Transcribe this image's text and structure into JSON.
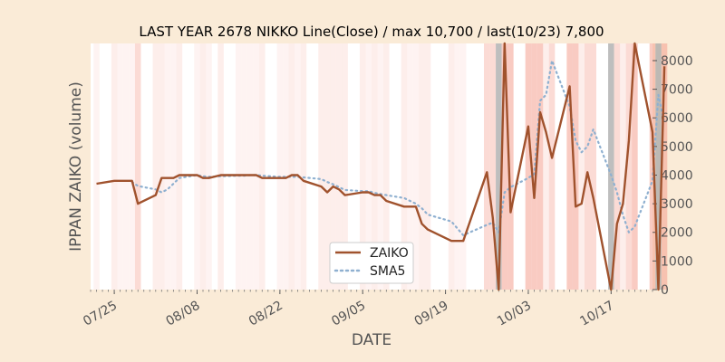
{
  "chart_data": {
    "type": "line",
    "title": "LAST YEAR 2678 NIKKO Line(Close) / max 10,700 / last(10/23) 7,800",
    "xlabel": "DATE",
    "ylabel": "IPPAN ZAIKO (volume)",
    "ylim": [
      0,
      8600
    ],
    "yticks": [
      0,
      1000,
      2000,
      3000,
      4000,
      5000,
      6000,
      7000,
      8000
    ],
    "ytick_labels": [
      "0",
      "1000",
      "2000",
      "3000",
      "4000",
      "5000",
      "6000",
      "7000",
      "8000"
    ],
    "xlim": [
      "2022-07-21",
      "2022-10-24"
    ],
    "xticks": [
      "2022-07-25",
      "2022-08-08",
      "2022-08-22",
      "2022-09-05",
      "2022-09-19",
      "2022-10-03",
      "2022-10-17"
    ],
    "xtick_labels": [
      "07/25",
      "08/08",
      "08/22",
      "09/05",
      "09/19",
      "10/03",
      "10/17"
    ],
    "legend": {
      "placement": "lower-center"
    },
    "colors": {
      "zaiko": "#a0522d",
      "sma5": "#8fb0d0",
      "band": "#f4a090",
      "band_dark": "#a8a8a8"
    },
    "series": [
      {
        "name": "ZAIKO",
        "style": "solid",
        "points": [
          [
            "2022-07-22",
            3700
          ],
          [
            "2022-07-25",
            3800
          ],
          [
            "2022-07-26",
            3800
          ],
          [
            "2022-07-27",
            3800
          ],
          [
            "2022-07-28",
            3800
          ],
          [
            "2022-07-29",
            3000
          ],
          [
            "2022-08-01",
            3300
          ],
          [
            "2022-08-02",
            3900
          ],
          [
            "2022-08-03",
            3900
          ],
          [
            "2022-08-04",
            3900
          ],
          [
            "2022-08-05",
            4000
          ],
          [
            "2022-08-08",
            4000
          ],
          [
            "2022-08-09",
            3900
          ],
          [
            "2022-08-10",
            3900
          ],
          [
            "2022-08-12",
            4000
          ],
          [
            "2022-08-15",
            4000
          ],
          [
            "2022-08-16",
            4000
          ],
          [
            "2022-08-17",
            4000
          ],
          [
            "2022-08-18",
            4000
          ],
          [
            "2022-08-19",
            3900
          ],
          [
            "2022-08-22",
            3900
          ],
          [
            "2022-08-23",
            3900
          ],
          [
            "2022-08-24",
            4000
          ],
          [
            "2022-08-25",
            4000
          ],
          [
            "2022-08-26",
            3800
          ],
          [
            "2022-08-29",
            3600
          ],
          [
            "2022-08-30",
            3400
          ],
          [
            "2022-08-31",
            3600
          ],
          [
            "2022-09-01",
            3500
          ],
          [
            "2022-09-02",
            3300
          ],
          [
            "2022-09-05",
            3400
          ],
          [
            "2022-09-06",
            3400
          ],
          [
            "2022-09-07",
            3300
          ],
          [
            "2022-09-08",
            3300
          ],
          [
            "2022-09-09",
            3100
          ],
          [
            "2022-09-12",
            2900
          ],
          [
            "2022-09-13",
            2900
          ],
          [
            "2022-09-14",
            2900
          ],
          [
            "2022-09-15",
            2300
          ],
          [
            "2022-09-16",
            2100
          ],
          [
            "2022-09-20",
            1700
          ],
          [
            "2022-09-21",
            1700
          ],
          [
            "2022-09-22",
            1700
          ],
          [
            "2022-09-26",
            4100
          ],
          [
            "2022-09-27",
            2500
          ],
          [
            "2022-09-28",
            0
          ],
          [
            "2022-09-29",
            8600
          ],
          [
            "2022-09-30",
            2700
          ],
          [
            "2022-10-03",
            5700
          ],
          [
            "2022-10-04",
            3200
          ],
          [
            "2022-10-05",
            6200
          ],
          [
            "2022-10-06",
            5500
          ],
          [
            "2022-10-07",
            4600
          ],
          [
            "2022-10-10",
            7100
          ],
          [
            "2022-10-11",
            2900
          ],
          [
            "2022-10-12",
            3000
          ],
          [
            "2022-10-13",
            4100
          ],
          [
            "2022-10-14",
            3200
          ],
          [
            "2022-10-17",
            0
          ],
          [
            "2022-10-18",
            2300
          ],
          [
            "2022-10-19",
            3000
          ],
          [
            "2022-10-20",
            5200
          ],
          [
            "2022-10-21",
            8600
          ],
          [
            "2022-10-24",
            5500
          ],
          [
            "2022-10-25",
            0
          ],
          [
            "2022-10-26",
            7800
          ]
        ]
      },
      {
        "name": "SMA5",
        "style": "dotted",
        "points": [
          [
            "2022-07-28",
            3760
          ],
          [
            "2022-07-29",
            3620
          ],
          [
            "2022-08-01",
            3500
          ],
          [
            "2022-08-02",
            3400
          ],
          [
            "2022-08-03",
            3500
          ],
          [
            "2022-08-04",
            3700
          ],
          [
            "2022-08-05",
            3900
          ],
          [
            "2022-08-08",
            4000
          ],
          [
            "2022-08-09",
            3960
          ],
          [
            "2022-08-10",
            3940
          ],
          [
            "2022-08-12",
            3960
          ],
          [
            "2022-08-15",
            3980
          ],
          [
            "2022-08-16",
            3980
          ],
          [
            "2022-08-17",
            4000
          ],
          [
            "2022-08-18",
            4000
          ],
          [
            "2022-08-19",
            3980
          ],
          [
            "2022-08-22",
            3940
          ],
          [
            "2022-08-23",
            3940
          ],
          [
            "2022-08-24",
            3940
          ],
          [
            "2022-08-25",
            3940
          ],
          [
            "2022-08-26",
            3920
          ],
          [
            "2022-08-29",
            3860
          ],
          [
            "2022-08-30",
            3760
          ],
          [
            "2022-08-31",
            3680
          ],
          [
            "2022-09-01",
            3580
          ],
          [
            "2022-09-02",
            3480
          ],
          [
            "2022-09-05",
            3440
          ],
          [
            "2022-09-06",
            3440
          ],
          [
            "2022-09-07",
            3380
          ],
          [
            "2022-09-08",
            3340
          ],
          [
            "2022-09-09",
            3300
          ],
          [
            "2022-09-12",
            3200
          ],
          [
            "2022-09-13",
            3100
          ],
          [
            "2022-09-14",
            3000
          ],
          [
            "2022-09-15",
            2840
          ],
          [
            "2022-09-16",
            2620
          ],
          [
            "2022-09-20",
            2380
          ],
          [
            "2022-09-21",
            2140
          ],
          [
            "2022-09-22",
            1900
          ],
          [
            "2022-09-26",
            2260
          ],
          [
            "2022-09-27",
            2340
          ],
          [
            "2022-09-28",
            2000
          ],
          [
            "2022-09-29",
            3400
          ],
          [
            "2022-09-30",
            3580
          ],
          [
            "2022-10-03",
            3900
          ],
          [
            "2022-10-04",
            4040
          ],
          [
            "2022-10-05",
            6600
          ],
          [
            "2022-10-06",
            6800
          ],
          [
            "2022-10-07",
            8000
          ],
          [
            "2022-10-10",
            6400
          ],
          [
            "2022-10-11",
            5200
          ],
          [
            "2022-10-12",
            4800
          ],
          [
            "2022-10-13",
            5000
          ],
          [
            "2022-10-14",
            5600
          ],
          [
            "2022-10-17",
            4000
          ],
          [
            "2022-10-18",
            3400
          ],
          [
            "2022-10-19",
            2600
          ],
          [
            "2022-10-20",
            2000
          ],
          [
            "2022-10-21",
            2200
          ],
          [
            "2022-10-24",
            3800
          ],
          [
            "2022-10-25",
            6800
          ],
          [
            "2022-10-26",
            5800
          ]
        ]
      }
    ]
  }
}
